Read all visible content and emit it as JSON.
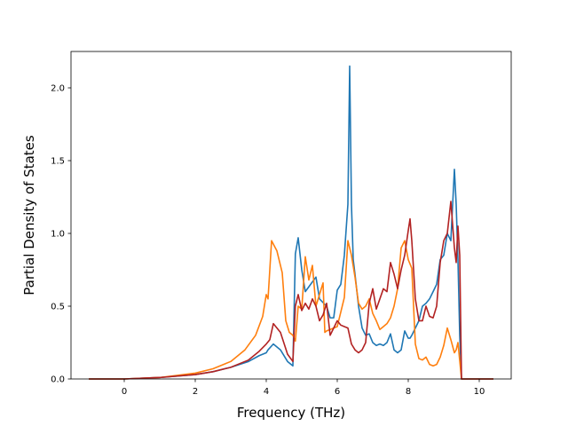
{
  "chart_data": {
    "type": "line",
    "title": "",
    "xlabel": "Frequency (THz)",
    "ylabel": "Partial Density of States",
    "xlim": [
      -1.5,
      10.9
    ],
    "ylim": [
      0.0,
      2.25
    ],
    "xticks": [
      "0",
      "2",
      "4",
      "6",
      "8",
      "10"
    ],
    "yticks": [
      "0.0",
      "0.5",
      "1.0",
      "1.5",
      "2.0"
    ],
    "grid": false,
    "legend": "none",
    "series": [
      {
        "color": "#1f77b4",
        "x": [
          -1.0,
          0.0,
          1.0,
          2.0,
          2.5,
          3.0,
          3.5,
          3.8,
          4.0,
          4.05,
          4.2,
          4.4,
          4.6,
          4.75,
          4.82,
          4.9,
          5.0,
          5.1,
          5.25,
          5.4,
          5.5,
          5.7,
          5.8,
          5.9,
          6.0,
          6.1,
          6.2,
          6.3,
          6.35,
          6.4,
          6.45,
          6.5,
          6.6,
          6.7,
          6.8,
          6.9,
          7.0,
          7.1,
          7.2,
          7.3,
          7.4,
          7.5,
          7.6,
          7.7,
          7.8,
          7.9,
          8.0,
          8.05,
          8.1,
          8.2,
          8.3,
          8.4,
          8.5,
          8.6,
          8.7,
          8.8,
          8.9,
          9.0,
          9.1,
          9.2,
          9.3,
          9.35,
          9.4,
          9.45,
          9.5,
          10.4
        ],
        "y": [
          0.0,
          0.0,
          0.01,
          0.03,
          0.05,
          0.08,
          0.12,
          0.16,
          0.18,
          0.2,
          0.24,
          0.2,
          0.12,
          0.09,
          0.86,
          0.97,
          0.75,
          0.6,
          0.65,
          0.7,
          0.55,
          0.5,
          0.42,
          0.42,
          0.61,
          0.65,
          0.85,
          1.2,
          2.15,
          1.2,
          0.82,
          0.72,
          0.5,
          0.35,
          0.3,
          0.31,
          0.25,
          0.23,
          0.24,
          0.23,
          0.25,
          0.31,
          0.2,
          0.18,
          0.2,
          0.33,
          0.28,
          0.28,
          0.3,
          0.35,
          0.4,
          0.5,
          0.52,
          0.55,
          0.6,
          0.65,
          0.82,
          0.85,
          1.0,
          0.95,
          1.44,
          1.2,
          0.82,
          0.3,
          0.0,
          0.0
        ]
      },
      {
        "color": "#ff7f0e",
        "x": [
          -1.0,
          0.0,
          1.0,
          2.0,
          2.5,
          3.0,
          3.4,
          3.7,
          3.9,
          4.0,
          4.05,
          4.15,
          4.3,
          4.45,
          4.55,
          4.65,
          4.75,
          4.82,
          4.9,
          5.0,
          5.1,
          5.2,
          5.3,
          5.4,
          5.5,
          5.6,
          5.65,
          5.7,
          5.8,
          6.0,
          6.2,
          6.3,
          6.35,
          6.4,
          6.5,
          6.6,
          6.7,
          6.8,
          6.9,
          7.0,
          7.1,
          7.2,
          7.3,
          7.4,
          7.5,
          7.6,
          7.7,
          7.8,
          7.9,
          8.0,
          8.1,
          8.2,
          8.3,
          8.4,
          8.5,
          8.6,
          8.7,
          8.8,
          8.9,
          9.0,
          9.1,
          9.2,
          9.3,
          9.35,
          9.4,
          9.5,
          10.4
        ],
        "y": [
          0.0,
          0.0,
          0.01,
          0.04,
          0.07,
          0.12,
          0.2,
          0.3,
          0.43,
          0.58,
          0.55,
          0.95,
          0.88,
          0.73,
          0.4,
          0.32,
          0.3,
          0.26,
          0.5,
          0.48,
          0.84,
          0.68,
          0.78,
          0.5,
          0.58,
          0.66,
          0.32,
          0.33,
          0.34,
          0.36,
          0.56,
          0.95,
          0.9,
          0.85,
          0.7,
          0.52,
          0.48,
          0.5,
          0.55,
          0.45,
          0.4,
          0.34,
          0.36,
          0.38,
          0.42,
          0.5,
          0.62,
          0.9,
          0.95,
          0.82,
          0.76,
          0.24,
          0.14,
          0.13,
          0.15,
          0.1,
          0.09,
          0.1,
          0.15,
          0.23,
          0.35,
          0.27,
          0.18,
          0.2,
          0.25,
          0.0,
          0.0
        ]
      },
      {
        "color": "#b22222",
        "x": [
          -1.0,
          0.0,
          1.0,
          2.0,
          2.5,
          3.0,
          3.5,
          3.8,
          4.0,
          4.1,
          4.2,
          4.4,
          4.6,
          4.75,
          4.82,
          4.9,
          5.0,
          5.1,
          5.2,
          5.3,
          5.4,
          5.5,
          5.6,
          5.7,
          5.8,
          5.9,
          6.0,
          6.1,
          6.2,
          6.3,
          6.4,
          6.5,
          6.6,
          6.7,
          6.8,
          6.9,
          7.0,
          7.1,
          7.2,
          7.3,
          7.4,
          7.5,
          7.6,
          7.7,
          7.8,
          7.9,
          8.0,
          8.05,
          8.1,
          8.2,
          8.3,
          8.4,
          8.5,
          8.6,
          8.7,
          8.8,
          8.9,
          9.0,
          9.1,
          9.2,
          9.3,
          9.35,
          9.4,
          9.45,
          9.5,
          10.4
        ],
        "y": [
          0.0,
          0.0,
          0.01,
          0.03,
          0.05,
          0.08,
          0.13,
          0.19,
          0.24,
          0.27,
          0.38,
          0.32,
          0.17,
          0.12,
          0.5,
          0.58,
          0.47,
          0.52,
          0.48,
          0.55,
          0.5,
          0.4,
          0.44,
          0.52,
          0.3,
          0.35,
          0.4,
          0.37,
          0.36,
          0.35,
          0.24,
          0.2,
          0.18,
          0.2,
          0.25,
          0.52,
          0.62,
          0.48,
          0.55,
          0.62,
          0.6,
          0.8,
          0.72,
          0.62,
          0.75,
          0.85,
          1.02,
          1.1,
          0.95,
          0.55,
          0.4,
          0.4,
          0.5,
          0.43,
          0.42,
          0.5,
          0.8,
          0.95,
          1.0,
          1.22,
          0.9,
          0.8,
          1.05,
          0.85,
          0.0,
          0.0
        ]
      }
    ]
  }
}
